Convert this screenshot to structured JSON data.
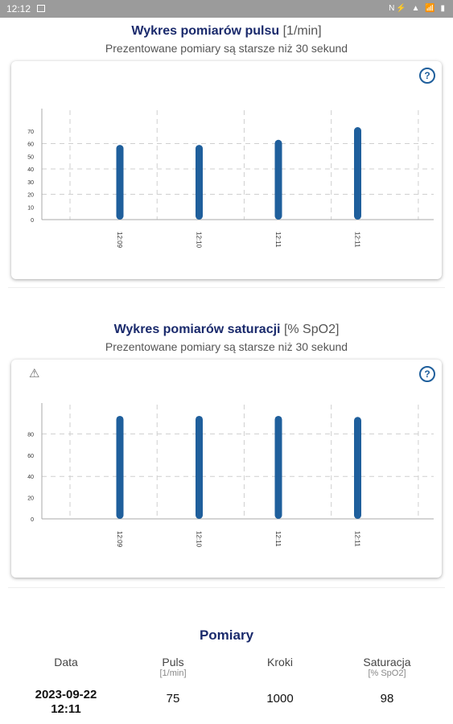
{
  "status_bar": {
    "time": "12:12",
    "icons": "N⚡ ▲ 📶 ▮"
  },
  "pulse": {
    "title": "Wykres pomiarów pulsu",
    "unit": "[1/min]",
    "subtitle": "Prezentowane pomiary są starsze niż 30 sekund",
    "help_icon": "question-circle-icon",
    "chart_data": {
      "type": "bar",
      "categories": [
        "12:09",
        "12:10",
        "12:11",
        "12:11"
      ],
      "values": [
        59,
        59,
        63,
        73
      ],
      "ylim": [
        0,
        80
      ],
      "yticks": [
        0,
        10,
        20,
        30,
        40,
        50,
        60,
        70
      ],
      "grid": true,
      "color": "#1f5f9c"
    }
  },
  "saturation": {
    "title": "Wykres pomiarów saturacji",
    "unit": "[% SpO2]",
    "subtitle": "Prezentowane pomiary są starsze niż 30 sekund",
    "help_icon": "question-circle-icon",
    "alert_icon": "alert-off-icon",
    "chart_data": {
      "type": "bar",
      "categories": [
        "12:09",
        "12:10",
        "12:11",
        "12:11"
      ],
      "values": [
        97,
        97,
        97,
        96
      ],
      "ylim": [
        0,
        100
      ],
      "yticks": [
        0,
        20,
        40,
        60,
        80
      ],
      "grid": true,
      "color": "#1f5f9c"
    }
  },
  "measurements": {
    "title": "Pomiary",
    "columns": [
      {
        "label": "Data",
        "unit": ""
      },
      {
        "label": "Puls",
        "unit": "[1/min]"
      },
      {
        "label": "Kroki",
        "unit": ""
      },
      {
        "label": "Saturacja",
        "unit": "[% SpO2]"
      }
    ],
    "rows": [
      {
        "date": "2023-09-22",
        "time": "12:11",
        "pulse": "75",
        "steps": "1000",
        "saturation": "98"
      }
    ]
  }
}
